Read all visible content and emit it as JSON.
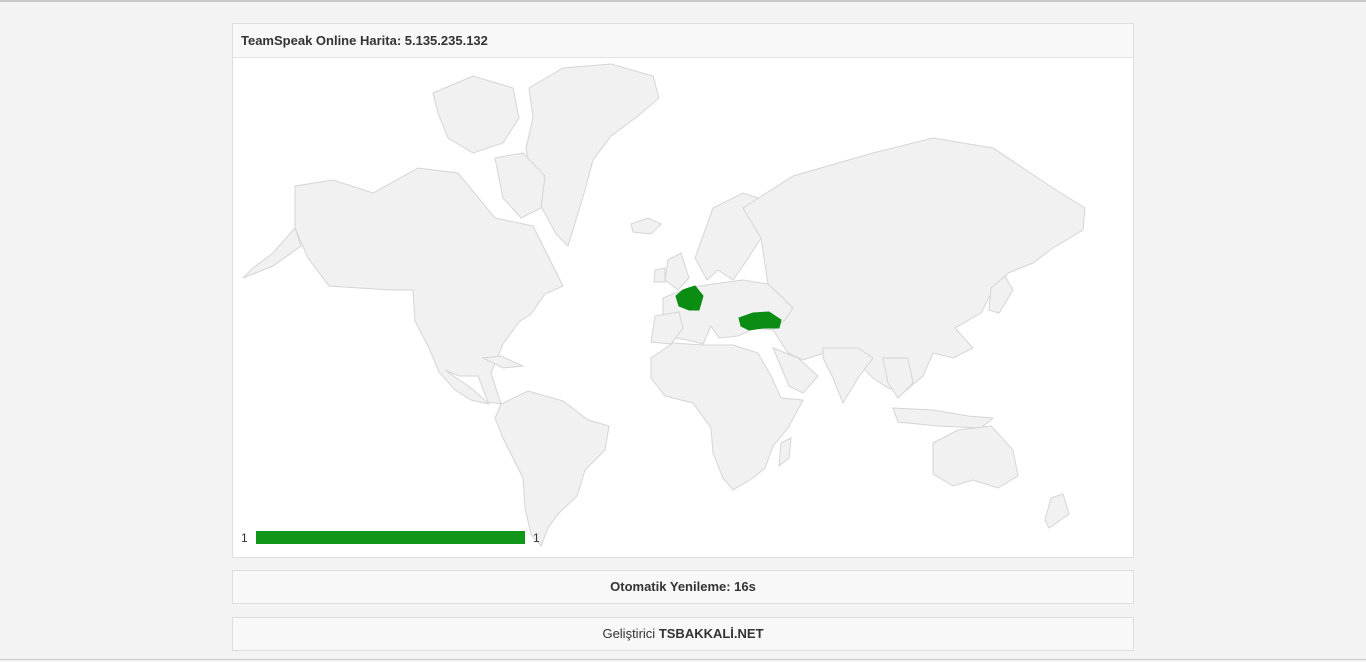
{
  "panel": {
    "title": "TeamSpeak Online Harita: 5.135.235.132"
  },
  "map": {
    "highlighted_countries": [
      {
        "name": "France",
        "value": 1
      },
      {
        "name": "Turkey",
        "value": 1
      }
    ],
    "legend": {
      "min": "1",
      "max": "1",
      "color": "#109618"
    },
    "land_color": "#f1f1f1",
    "border_color": "#d5d5d5"
  },
  "refresh": {
    "label": "Otomatik Yenileme: 16s"
  },
  "developer": {
    "prefix": "Geliştirici",
    "name": "TSBAKKALİ.NET"
  }
}
